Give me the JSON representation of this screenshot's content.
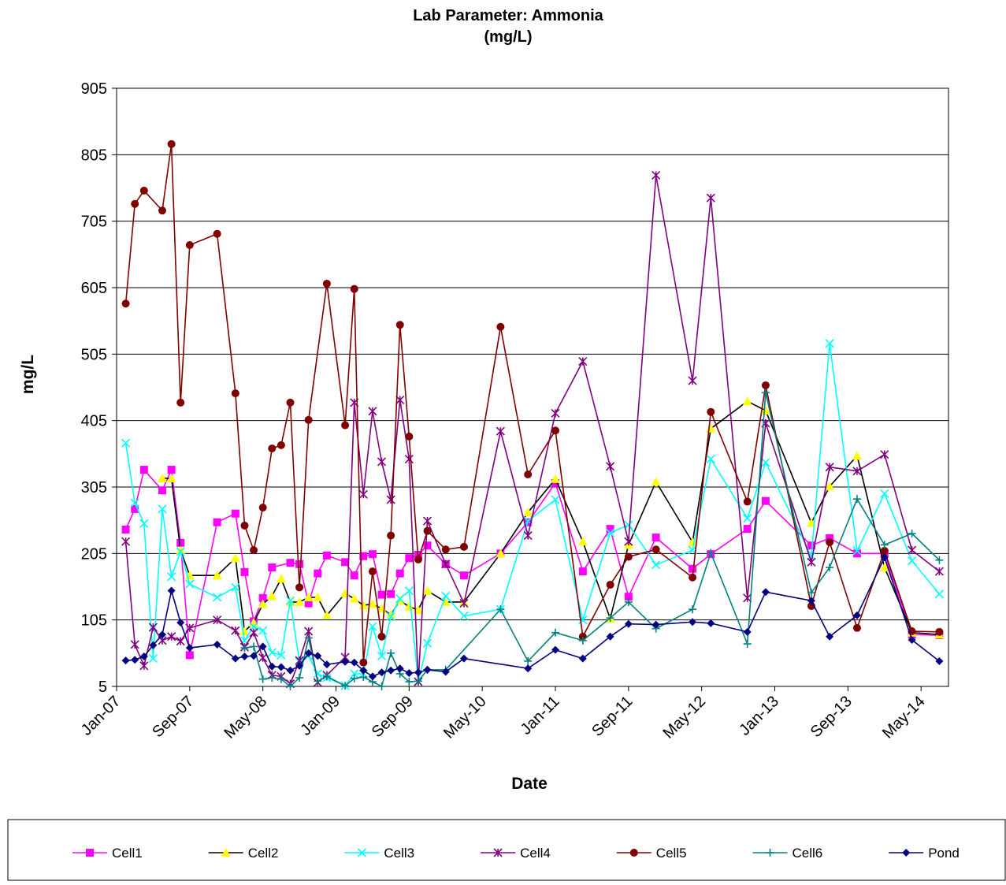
{
  "chart_data": {
    "type": "line",
    "title": "Lab Parameter:  Ammonia",
    "subtitle": "(mg/L)",
    "x_label": "Date",
    "y_label": "mg/L",
    "xlim": [
      "2007-01",
      "2014-08"
    ],
    "xticks": [
      {
        "value": "2007-01",
        "label": "Jan-07"
      },
      {
        "value": "2007-09",
        "label": "Sep-07"
      },
      {
        "value": "2008-05",
        "label": "May-08"
      },
      {
        "value": "2009-01",
        "label": "Jan-09"
      },
      {
        "value": "2009-09",
        "label": "Sep-09"
      },
      {
        "value": "2010-05",
        "label": "May-10"
      },
      {
        "value": "2011-01",
        "label": "Jan-11"
      },
      {
        "value": "2011-09",
        "label": "Sep-11"
      },
      {
        "value": "2012-05",
        "label": "May-12"
      },
      {
        "value": "2013-01",
        "label": "Jan-13"
      },
      {
        "value": "2013-09",
        "label": "Sep-13"
      },
      {
        "value": "2014-05",
        "label": "May-14"
      }
    ],
    "ylim": [
      5,
      905
    ],
    "yticks": [
      5,
      105,
      205,
      305,
      405,
      505,
      605,
      705,
      805,
      905
    ],
    "grid": true,
    "legend": "bottom",
    "series": [
      {
        "name": "Cell1",
        "color": "#ff00ff",
        "marker": "square",
        "x": [
          "2007-02",
          "2007-03",
          "2007-04",
          "2007-06",
          "2007-07",
          "2007-08",
          "2007-09",
          "2007-12",
          "2008-02",
          "2008-03",
          "2008-04",
          "2008-05",
          "2008-06",
          "2008-08",
          "2008-09",
          "2008-10",
          "2008-11",
          "2008-12",
          "2009-02",
          "2009-03",
          "2009-04",
          "2009-05",
          "2009-06",
          "2009-07",
          "2009-08",
          "2009-09",
          "2009-10",
          "2009-11",
          "2010-01",
          "2010-03",
          "2010-07",
          "2010-10",
          "2011-01",
          "2011-04",
          "2011-07",
          "2011-09",
          "2011-12",
          "2012-04",
          "2012-06",
          "2012-10",
          "2012-12",
          "2013-05",
          "2013-07",
          "2013-10",
          "2014-01",
          "2014-04",
          "2014-07"
        ],
        "values": [
          241,
          272,
          331,
          300,
          331,
          221,
          52,
          252,
          265,
          177,
          103,
          138,
          184,
          191,
          189,
          130,
          175,
          202,
          192,
          172,
          201,
          204,
          143,
          144,
          175,
          198,
          203,
          217,
          189,
          172,
          205,
          252,
          311,
          178,
          242,
          140,
          229,
          182,
          204,
          242,
          284,
          217,
          228,
          205,
          205,
          83,
          82
        ]
      },
      {
        "name": "Cell2",
        "color": "#000000",
        "marker_color": "#ffff00",
        "marker": "triangle",
        "x": [
          "2007-06",
          "2007-07",
          "2007-08",
          "2007-09",
          "2007-12",
          "2008-02",
          "2008-03",
          "2008-04",
          "2008-05",
          "2008-06",
          "2008-07",
          "2008-08",
          "2008-09",
          "2008-10",
          "2008-11",
          "2008-12",
          "2009-02",
          "2009-03",
          "2009-04",
          "2009-05",
          "2009-06",
          "2009-07",
          "2009-08",
          "2009-09",
          "2009-10",
          "2009-11",
          "2010-01",
          "2010-03",
          "2010-07",
          "2010-10",
          "2011-01",
          "2011-04",
          "2011-07",
          "2011-09",
          "2011-12",
          "2012-04",
          "2012-06",
          "2012-10",
          "2012-12",
          "2013-05",
          "2013-07",
          "2013-10",
          "2014-01",
          "2014-04",
          "2014-07"
        ],
        "values": [
          318,
          318,
          210,
          172,
          172,
          198,
          88,
          101,
          129,
          141,
          167,
          132,
          132,
          139,
          139,
          112,
          145,
          137,
          127,
          129,
          122,
          113,
          134,
          125,
          120,
          149,
          132,
          132,
          205,
          267,
          317,
          223,
          107,
          218,
          313,
          222,
          393,
          434,
          420,
          251,
          306,
          352,
          184,
          86,
          83
        ]
      },
      {
        "name": "Cell3",
        "color": "#00ffff",
        "marker": "x",
        "x": [
          "2007-02",
          "2007-03",
          "2007-04",
          "2007-05",
          "2007-06",
          "2007-07",
          "2007-08",
          "2007-09",
          "2007-12",
          "2008-02",
          "2008-03",
          "2008-04",
          "2008-05",
          "2008-06",
          "2008-07",
          "2008-08",
          "2008-09",
          "2008-10",
          "2008-11",
          "2008-12",
          "2009-02",
          "2009-03",
          "2009-04",
          "2009-05",
          "2009-06",
          "2009-07",
          "2009-08",
          "2009-09",
          "2009-10",
          "2009-11",
          "2010-01",
          "2010-03",
          "2010-07",
          "2010-10",
          "2011-01",
          "2011-04",
          "2011-07",
          "2011-09",
          "2011-12",
          "2012-04",
          "2012-06",
          "2012-10",
          "2012-12",
          "2013-05",
          "2013-07",
          "2013-10",
          "2014-01",
          "2014-04",
          "2014-07"
        ],
        "values": [
          371,
          281,
          250,
          47,
          272,
          170,
          208,
          159,
          139,
          154,
          74,
          95,
          89,
          56,
          52,
          134,
          42,
          51,
          24,
          18,
          6,
          24,
          24,
          95,
          51,
          110,
          137,
          149,
          12,
          70,
          141,
          111,
          121,
          254,
          286,
          105,
          236,
          248,
          188,
          210,
          347,
          258,
          342,
          201,
          521,
          209,
          295,
          194,
          144
        ]
      },
      {
        "name": "Cell4",
        "color": "#800080",
        "marker": "star",
        "x": [
          "2007-02",
          "2007-03",
          "2007-04",
          "2007-05",
          "2007-06",
          "2007-07",
          "2007-08",
          "2007-09",
          "2007-12",
          "2008-02",
          "2008-03",
          "2008-04",
          "2008-05",
          "2008-06",
          "2008-07",
          "2008-08",
          "2008-09",
          "2008-10",
          "2008-11",
          "2008-12",
          "2009-02",
          "2009-03",
          "2009-04",
          "2009-05",
          "2009-06",
          "2009-07",
          "2009-08",
          "2009-09",
          "2009-10",
          "2009-11",
          "2010-01",
          "2010-03",
          "2010-07",
          "2010-10",
          "2011-01",
          "2011-04",
          "2011-07",
          "2011-09",
          "2011-12",
          "2012-04",
          "2012-06",
          "2012-10",
          "2012-12",
          "2013-05",
          "2013-07",
          "2013-10",
          "2014-01",
          "2014-04",
          "2014-07"
        ],
        "values": [
          223,
          68,
          36,
          94,
          74,
          80,
          73,
          93,
          105,
          89,
          64,
          86,
          48,
          22,
          20,
          9,
          44,
          88,
          11,
          22,
          49,
          432,
          294,
          419,
          343,
          286,
          436,
          347,
          12,
          254,
          189,
          130,
          389,
          232,
          416,
          494,
          336,
          223,
          774,
          465,
          740,
          138,
          401,
          192,
          335,
          329,
          354,
          210,
          178
        ]
      },
      {
        "name": "Cell5",
        "color": "#800000",
        "marker": "circle",
        "x": [
          "2007-02",
          "2007-03",
          "2007-04",
          "2007-06",
          "2007-07",
          "2007-08",
          "2007-09",
          "2007-12",
          "2008-02",
          "2008-03",
          "2008-04",
          "2008-05",
          "2008-06",
          "2008-07",
          "2008-08",
          "2008-09",
          "2008-10",
          "2008-12",
          "2009-02",
          "2009-03",
          "2009-04",
          "2009-05",
          "2009-06",
          "2009-07",
          "2009-08",
          "2009-09",
          "2009-10",
          "2009-11",
          "2010-01",
          "2010-03",
          "2010-07",
          "2010-10",
          "2011-01",
          "2011-04",
          "2011-07",
          "2011-09",
          "2011-12",
          "2012-04",
          "2012-06",
          "2012-10",
          "2012-12",
          "2013-05",
          "2013-07",
          "2013-10",
          "2014-01",
          "2014-04",
          "2014-07"
        ],
        "values": [
          581,
          731,
          751,
          721,
          821,
          432,
          669,
          686,
          446,
          247,
          210,
          274,
          363,
          368,
          432,
          154,
          406,
          611,
          398,
          603,
          41,
          178,
          80,
          232,
          549,
          381,
          196,
          239,
          211,
          215,
          546,
          324,
          390,
          80,
          158,
          200,
          211,
          169,
          418,
          283,
          458,
          126,
          222,
          93,
          209,
          88,
          87
        ]
      },
      {
        "name": "Cell6",
        "color": "#008080",
        "marker": "plus",
        "x": [
          "2008-03",
          "2008-04",
          "2008-05",
          "2008-06",
          "2008-07",
          "2008-08",
          "2008-09",
          "2008-10",
          "2008-11",
          "2008-12",
          "2009-02",
          "2009-03",
          "2009-04",
          "2009-05",
          "2009-06",
          "2009-07",
          "2009-08",
          "2009-09",
          "2009-10",
          "2009-11",
          "2010-01",
          "2010-07",
          "2010-10",
          "2011-01",
          "2011-04",
          "2011-07",
          "2011-09",
          "2011-12",
          "2012-04",
          "2012-06",
          "2012-10",
          "2012-12",
          "2013-05",
          "2013-07",
          "2013-10",
          "2014-01",
          "2014-04",
          "2014-07"
        ],
        "values": [
          63,
          65,
          16,
          18,
          16,
          5,
          18,
          78,
          13,
          20,
          6,
          17,
          19,
          12,
          5,
          55,
          24,
          12,
          13,
          30,
          30,
          121,
          43,
          86,
          74,
          108,
          132,
          92,
          121,
          206,
          69,
          447,
          146,
          184,
          287,
          218,
          235,
          195
        ]
      },
      {
        "name": "Pond",
        "color": "#000080",
        "marker": "diamond",
        "x": [
          "2007-02",
          "2007-03",
          "2007-04",
          "2007-05",
          "2007-06",
          "2007-07",
          "2007-08",
          "2007-09",
          "2007-12",
          "2008-02",
          "2008-03",
          "2008-04",
          "2008-05",
          "2008-06",
          "2008-07",
          "2008-08",
          "2008-09",
          "2008-10",
          "2008-11",
          "2008-12",
          "2009-02",
          "2009-03",
          "2009-04",
          "2009-05",
          "2009-06",
          "2009-07",
          "2009-08",
          "2009-09",
          "2009-10",
          "2009-11",
          "2010-01",
          "2010-03",
          "2010-10",
          "2011-01",
          "2011-04",
          "2011-07",
          "2011-09",
          "2011-12",
          "2012-04",
          "2012-06",
          "2012-10",
          "2012-12",
          "2013-05",
          "2013-07",
          "2013-10",
          "2014-01",
          "2014-04",
          "2014-07"
        ],
        "values": [
          44,
          45,
          50,
          67,
          83,
          149,
          101,
          63,
          68,
          47,
          50,
          51,
          65,
          35,
          34,
          29,
          36,
          55,
          51,
          38,
          42,
          41,
          29,
          20,
          26,
          29,
          32,
          25,
          26,
          30,
          27,
          47,
          32,
          60,
          47,
          80,
          99,
          98,
          102,
          100,
          87,
          147,
          134,
          80,
          112,
          199,
          75,
          43
        ]
      }
    ]
  }
}
